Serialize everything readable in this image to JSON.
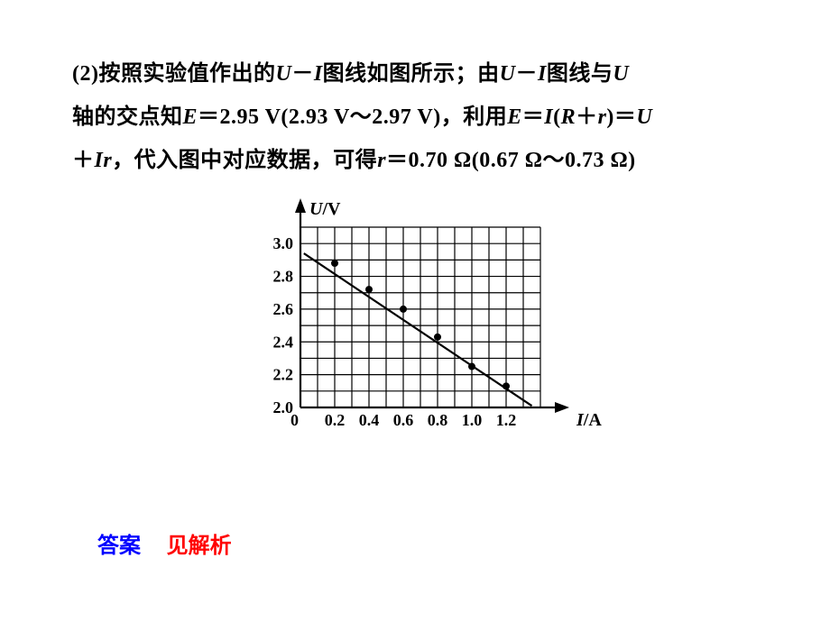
{
  "paragraph": {
    "line1_pre": "(2)按照实验值作出的",
    "line1_ui1_u": "U",
    "line1_ui1_dash": "－",
    "line1_ui1_i": "I",
    "line1_mid": "图线如图所示；由",
    "line1_ui2_u": "U",
    "line1_ui2_dash": "－",
    "line1_ui2_i": "I",
    "line1_post": "图线与",
    "line1_trail_u": "U",
    "line2_pre": "轴的交点知",
    "line2_e1": "E",
    "line2_eq": "＝",
    "line2_val1": "2.95 V(2.93 V～2.97 V)",
    "line2_comma": "，利用",
    "line2_formula_e": "E",
    "line2_formula_eq": "＝",
    "line2_formula_i": "I",
    "line2_formula_lp": "(",
    "line2_formula_r": "R",
    "line2_formula_plus": "＋",
    "line2_formula_r2": "r",
    "line2_formula_rp": ")",
    "line2_formula_eq2": "＝",
    "line2_formula_u": "U",
    "line3_plus": "＋",
    "line3_i": "I",
    "line3_r": "r",
    "line3_comma": "，代入图中对应数据，可得",
    "line3_r2": "r",
    "line3_eq": "＝",
    "line3_val": "0.70 Ω(0.67 Ω～0.73 Ω)"
  },
  "chart": {
    "type": "scatter-with-line",
    "y_axis_label_var": "U",
    "y_axis_label_unit": "/V",
    "x_axis_label_var": "I",
    "x_axis_label_unit": "/A",
    "x_ticks": [
      "0",
      "0.2",
      "0.4",
      "0.6",
      "0.8",
      "1.0",
      "1.2"
    ],
    "y_ticks": [
      "2.0",
      "2.2",
      "2.4",
      "2.6",
      "2.8",
      "3.0"
    ],
    "xlim": [
      0,
      1.4
    ],
    "ylim": [
      2.0,
      3.1
    ],
    "grid_minor_x_step": 0.1,
    "grid_minor_y_step": 0.1,
    "line": {
      "x1": 0.02,
      "y1": 2.94,
      "x2": 1.35,
      "y2": 2.01
    },
    "points": [
      {
        "x": 0.2,
        "y": 2.88
      },
      {
        "x": 0.4,
        "y": 2.72
      },
      {
        "x": 0.6,
        "y": 2.6
      },
      {
        "x": 0.8,
        "y": 2.43
      },
      {
        "x": 1.0,
        "y": 2.25
      },
      {
        "x": 1.2,
        "y": 2.13
      }
    ],
    "colors": {
      "background": "#ffffff",
      "grid": "#000000",
      "axis": "#000000",
      "line": "#000000",
      "point": "#000000"
    },
    "stroke": {
      "grid_width": 1.2,
      "axis_width": 2.2,
      "data_line_width": 2.2,
      "point_radius": 4
    }
  },
  "answer": {
    "label": "答案",
    "value": "见解析"
  }
}
